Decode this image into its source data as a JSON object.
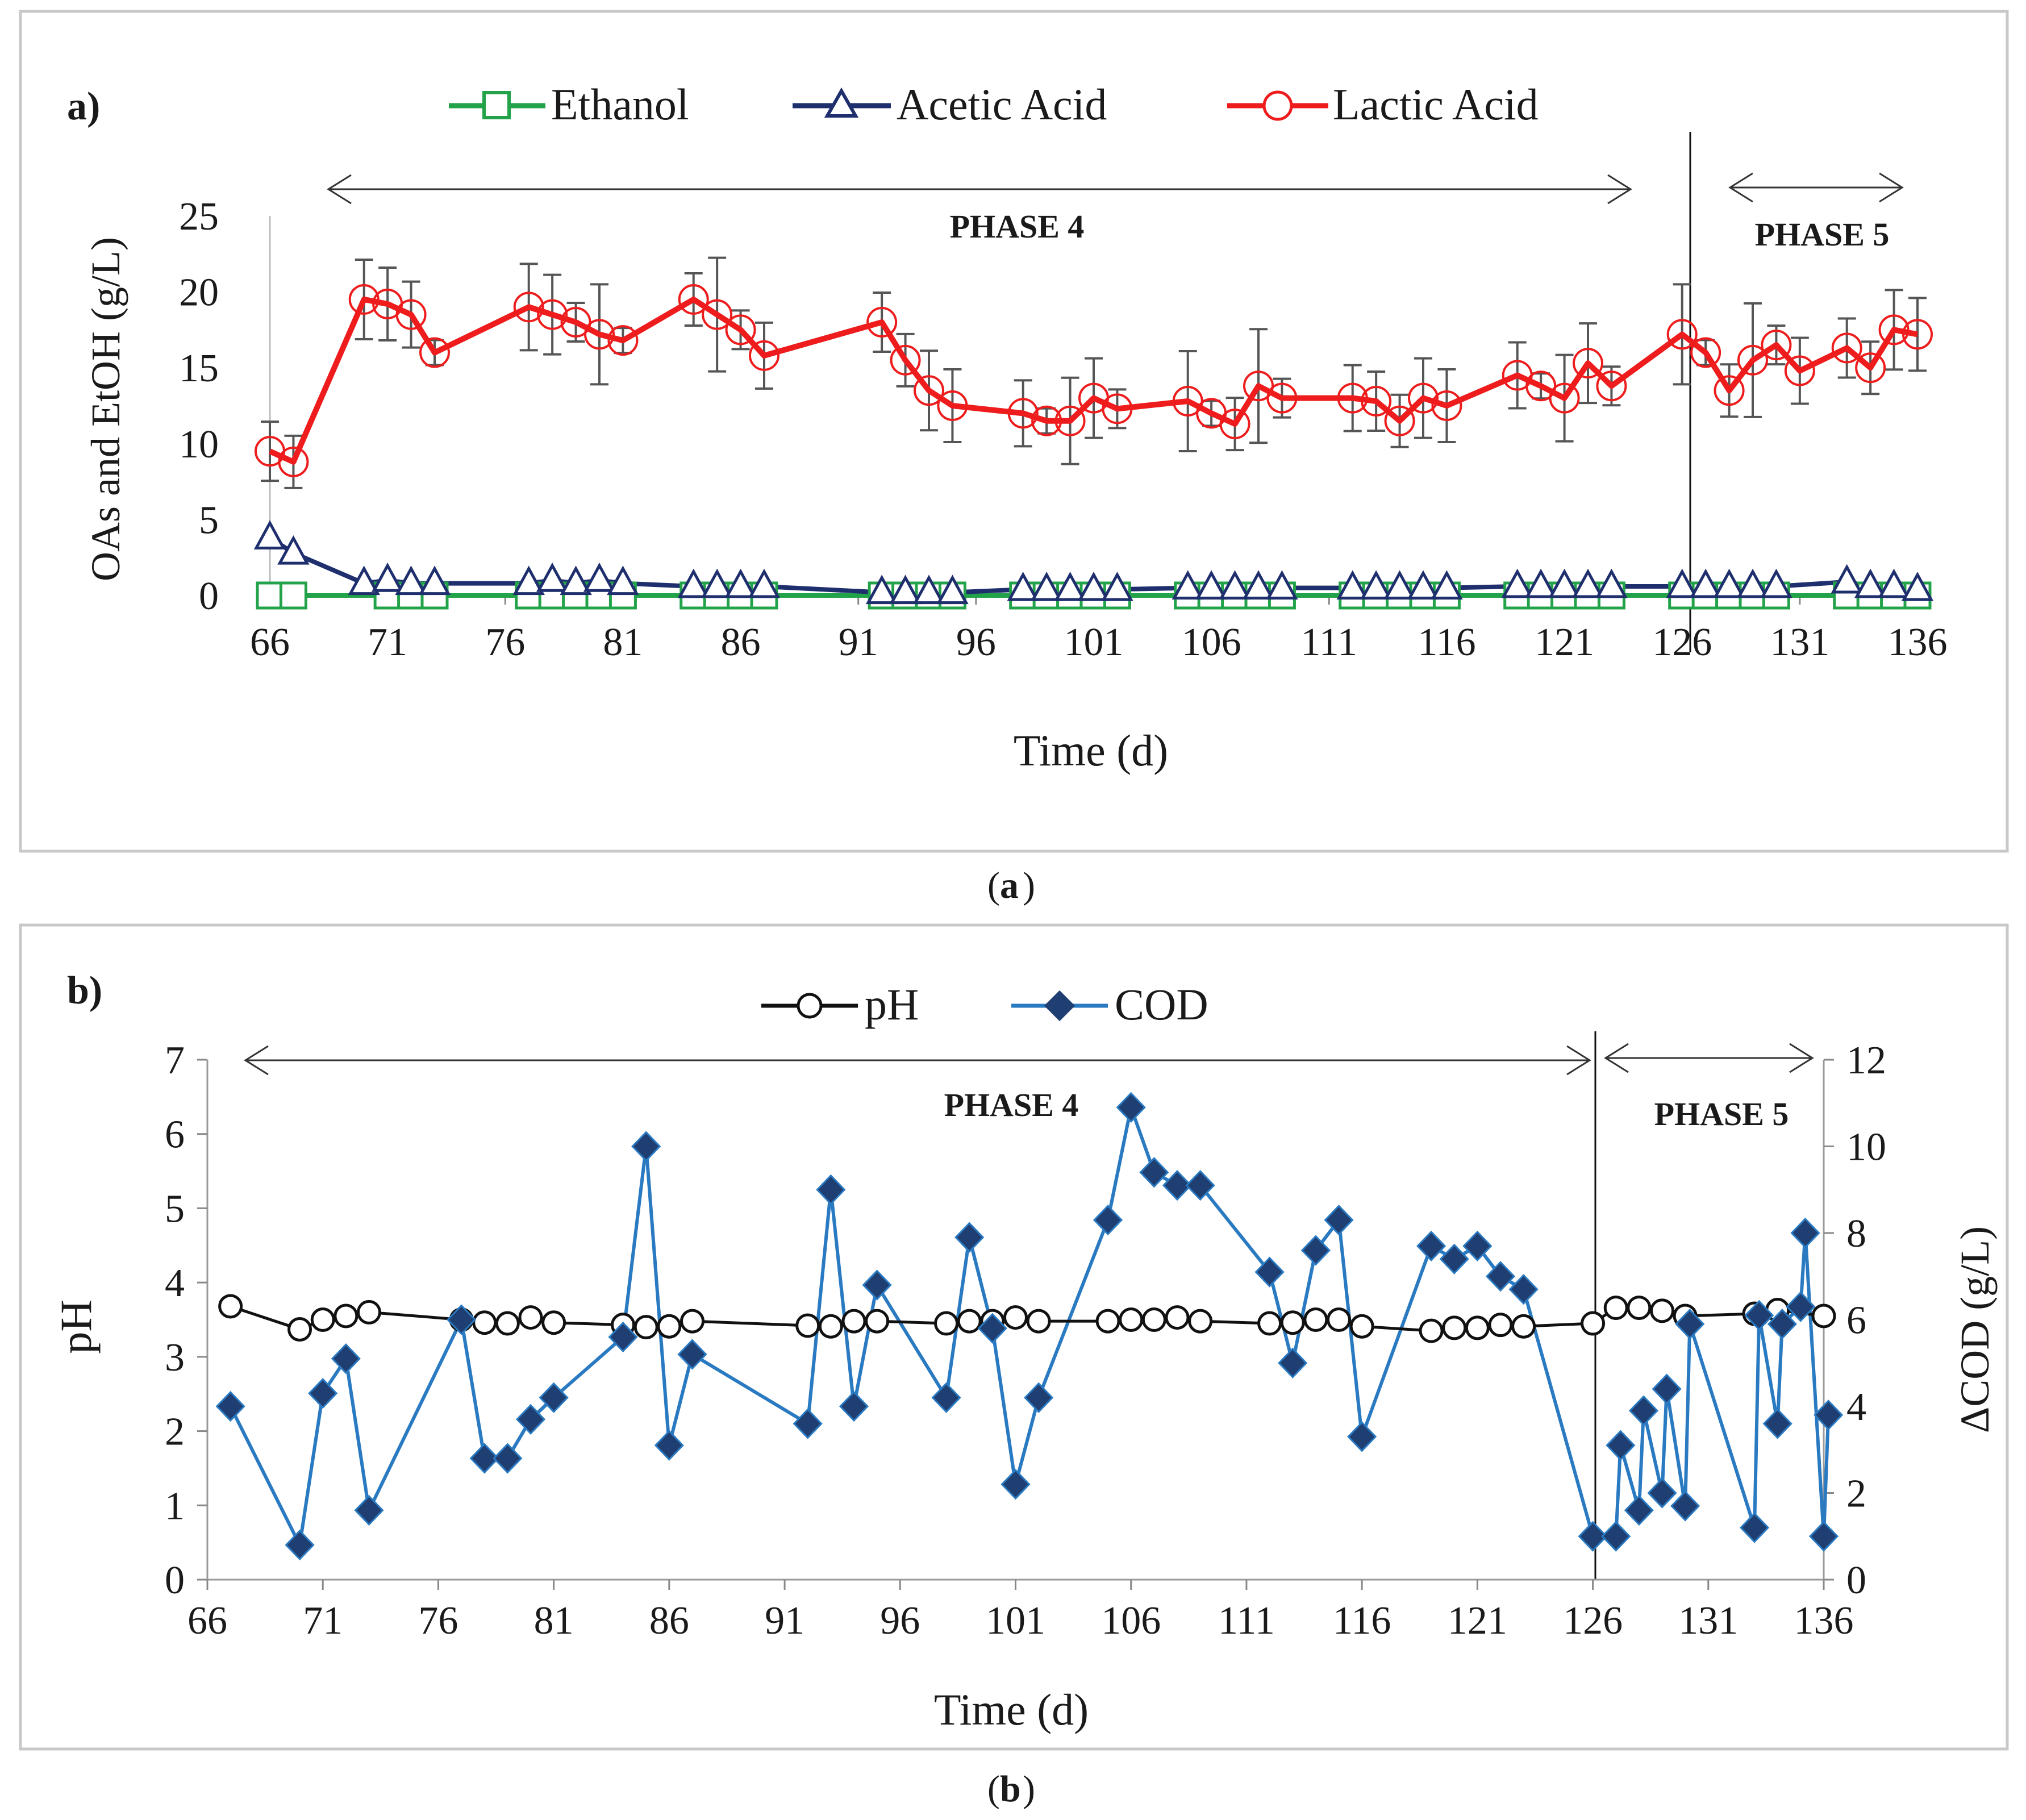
{
  "chart_data": [
    {
      "panel": "a",
      "type": "line",
      "panel_tag": "a)",
      "caption": "a",
      "xlabel": "Time (d)",
      "ylabel": "OAs and EtOH (g/L)",
      "xlim": [
        66,
        136
      ],
      "ylim": [
        0,
        25
      ],
      "xticks": [
        "66",
        "71",
        "76",
        "81",
        "86",
        "91",
        "96",
        "101",
        "106",
        "111",
        "116",
        "121",
        "126",
        "131",
        "136"
      ],
      "yticks": [
        "0",
        "5",
        "10",
        "15",
        "20",
        "25"
      ],
      "legend": [
        "Ethanol",
        "Acetic Acid",
        "Lactic Acid"
      ],
      "annotations": {
        "phase4": "PHASE 4",
        "phase5": "PHASE 5",
        "phase_boundary_day": 126
      },
      "series": [
        {
          "name": "Ethanol",
          "color": "#22a34a",
          "marker": "square",
          "x": [
            66,
            67,
            71,
            72,
            73,
            77,
            78,
            79,
            80,
            81,
            84,
            85,
            86,
            87,
            92,
            93,
            94,
            95,
            98,
            99,
            100,
            101,
            102,
            105,
            106,
            107,
            108,
            109,
            112,
            113,
            114,
            115,
            116,
            119,
            120,
            121,
            122,
            123,
            126,
            127,
            128,
            129,
            130,
            133,
            134,
            135,
            136
          ],
          "y": [
            0,
            0,
            0,
            0,
            0,
            0,
            0,
            0,
            0,
            0,
            0,
            0,
            0,
            0,
            0,
            0,
            0,
            0,
            0,
            0,
            0,
            0,
            0,
            0,
            0,
            0,
            0,
            0,
            0,
            0,
            0,
            0,
            0,
            0,
            0,
            0,
            0,
            0,
            0,
            0,
            0,
            0,
            0,
            0,
            0,
            0,
            0
          ]
        },
        {
          "name": "Acetic Acid",
          "color": "#1f2f6e",
          "marker": "triangle",
          "x": [
            66,
            67,
            70,
            71,
            72,
            73,
            77,
            78,
            79,
            80,
            81,
            84,
            85,
            86,
            87,
            92,
            93,
            94,
            95,
            98,
            99,
            100,
            101,
            102,
            105,
            106,
            107,
            108,
            109,
            112,
            113,
            114,
            115,
            116,
            119,
            120,
            121,
            122,
            123,
            126,
            127,
            128,
            129,
            130,
            133,
            134,
            135,
            136
          ],
          "y": [
            3.8,
            2.8,
            0.8,
            1.0,
            0.8,
            0.8,
            0.8,
            1.0,
            0.8,
            1.0,
            0.8,
            0.6,
            0.6,
            0.6,
            0.6,
            0.2,
            0.2,
            0.2,
            0.2,
            0.4,
            0.4,
            0.4,
            0.4,
            0.4,
            0.5,
            0.5,
            0.5,
            0.5,
            0.5,
            0.5,
            0.5,
            0.5,
            0.5,
            0.5,
            0.6,
            0.6,
            0.6,
            0.6,
            0.6,
            0.6,
            0.6,
            0.6,
            0.6,
            0.6,
            0.9,
            0.6,
            0.6,
            0.4
          ]
        },
        {
          "name": "Lactic Acid",
          "color": "#ee1c1c",
          "marker": "circle",
          "x": [
            66,
            67,
            70,
            71,
            72,
            73,
            77,
            78,
            79,
            80,
            81,
            84,
            85,
            86,
            87,
            92,
            93,
            94,
            95,
            98,
            99,
            100,
            101,
            102,
            105,
            106,
            107,
            108,
            109,
            112,
            113,
            114,
            115,
            116,
            119,
            120,
            121,
            122,
            123,
            126,
            127,
            128,
            129,
            130,
            131,
            133,
            134,
            135,
            136
          ],
          "y": [
            9.5,
            8.8,
            19.5,
            19.2,
            18.5,
            16.0,
            19.0,
            18.5,
            18.0,
            17.2,
            16.8,
            19.5,
            18.5,
            17.5,
            15.8,
            18.0,
            15.5,
            13.5,
            12.5,
            12.0,
            11.5,
            11.5,
            13.0,
            12.3,
            12.8,
            12.0,
            11.3,
            13.8,
            13.0,
            13.0,
            12.8,
            11.5,
            13.0,
            12.5,
            14.5,
            13.8,
            13.0,
            15.3,
            13.8,
            17.2,
            16.0,
            13.5,
            15.5,
            16.5,
            14.8,
            16.3,
            15.0,
            17.5,
            17.2
          ]
        }
      ]
    },
    {
      "panel": "b",
      "type": "line",
      "panel_tag": "b)",
      "caption": "b",
      "xlabel": "Time (d)",
      "ylabel_left": "pH",
      "ylabel_right": "ΔCOD (g/L)",
      "xlim": [
        66,
        136
      ],
      "ylim_left": [
        0,
        7
      ],
      "ylim_right": [
        0,
        12
      ],
      "xticks": [
        "66",
        "71",
        "76",
        "81",
        "86",
        "91",
        "96",
        "101",
        "106",
        "111",
        "116",
        "121",
        "126",
        "131",
        "136"
      ],
      "yticks_left": [
        "0",
        "1",
        "2",
        "3",
        "4",
        "5",
        "6",
        "7"
      ],
      "yticks_right": [
        "0",
        "2",
        "4",
        "6",
        "8",
        "10",
        "12"
      ],
      "legend": [
        "pH",
        "COD"
      ],
      "annotations": {
        "phase4": "PHASE 4",
        "phase5": "PHASE 5",
        "phase_boundary_day": 126
      },
      "series": [
        {
          "name": "pH",
          "color": "#111111",
          "marker": "circle",
          "axis": "left",
          "x": [
            67,
            70,
            71,
            72,
            73,
            77,
            78,
            79,
            80,
            81,
            84,
            85,
            86,
            87,
            92,
            93,
            94,
            95,
            98,
            99,
            100,
            101,
            102,
            105,
            106,
            107,
            108,
            109,
            112,
            113,
            114,
            115,
            116,
            119,
            120,
            121,
            122,
            123,
            126,
            127,
            128,
            129,
            130,
            133,
            134,
            136
          ],
          "y": [
            3.68,
            3.37,
            3.5,
            3.55,
            3.6,
            3.5,
            3.46,
            3.45,
            3.53,
            3.46,
            3.43,
            3.4,
            3.41,
            3.48,
            3.42,
            3.41,
            3.48,
            3.48,
            3.45,
            3.48,
            3.48,
            3.53,
            3.48,
            3.48,
            3.5,
            3.5,
            3.53,
            3.48,
            3.45,
            3.46,
            3.5,
            3.5,
            3.41,
            3.35,
            3.39,
            3.39,
            3.43,
            3.41,
            3.45,
            3.66,
            3.66,
            3.62,
            3.55,
            3.58,
            3.63,
            3.55
          ]
        },
        {
          "name": "COD",
          "color": "#2a7ac2",
          "marker": "diamond",
          "axis": "right",
          "x": [
            67,
            70,
            71,
            72,
            73,
            77,
            78,
            79,
            80,
            81,
            84,
            85,
            86,
            87,
            92,
            93,
            94,
            95,
            98,
            99,
            100,
            101,
            102,
            105,
            106,
            107,
            108,
            109,
            112,
            113,
            114,
            115,
            116,
            119,
            120,
            121,
            122,
            123,
            126,
            127,
            127.2,
            128,
            128.2,
            129,
            129.2,
            130,
            130.2,
            133,
            133.2,
            134,
            134.2,
            135,
            135.2,
            136,
            136.2
          ],
          "y": [
            4.0,
            0.8,
            4.3,
            5.1,
            1.6,
            6.0,
            2.8,
            2.8,
            3.7,
            4.2,
            5.6,
            10.0,
            3.1,
            5.2,
            3.6,
            9.0,
            4.0,
            6.8,
            4.2,
            7.9,
            5.8,
            2.2,
            4.2,
            8.3,
            10.9,
            9.4,
            9.1,
            9.1,
            7.1,
            5.0,
            7.6,
            8.3,
            3.3,
            7.7,
            7.4,
            7.7,
            7.0,
            6.7,
            1.0,
            1.0,
            3.1,
            1.6,
            3.9,
            2.0,
            4.4,
            1.7,
            5.9,
            1.2,
            6.1,
            3.6,
            5.9,
            6.3,
            8.0,
            1.0,
            3.8
          ]
        }
      ]
    }
  ]
}
